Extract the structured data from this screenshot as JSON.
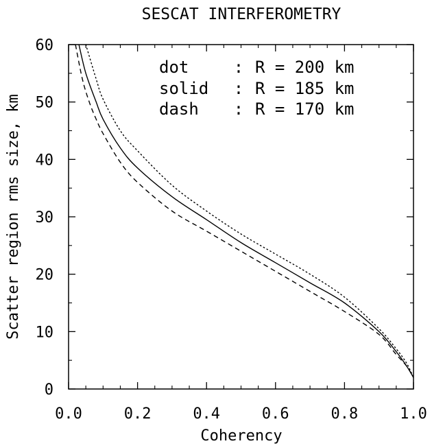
{
  "chart_data": {
    "type": "line",
    "title": "SESCAT INTERFEROMETRY",
    "xlabel": "Coherency",
    "ylabel": "Scatter region rms size, km",
    "xlim": [
      0.0,
      1.0
    ],
    "ylim": [
      0,
      60
    ],
    "x_ticks": [
      "0.0",
      "0.2",
      "0.4",
      "0.6",
      "0.8",
      "1.0"
    ],
    "y_ticks": [
      "0",
      "10",
      "20",
      "30",
      "40",
      "50",
      "60"
    ],
    "grid": false,
    "legend_position": "top-right",
    "legend": [
      {
        "style": "dot",
        "label": "R = 200 km",
        "key": "dot"
      },
      {
        "style": "solid",
        "label": "R = 185 km",
        "key": "solid"
      },
      {
        "style": "dash",
        "label": "R = 170 km",
        "key": "dash"
      }
    ],
    "series": [
      {
        "name": "R = 200 km",
        "style": "dotted",
        "x": [
          0.05,
          0.08,
          0.1,
          0.15,
          0.2,
          0.3,
          0.4,
          0.5,
          0.6,
          0.7,
          0.8,
          0.9,
          0.95,
          0.98,
          1.0
        ],
        "y": [
          60,
          54,
          50.5,
          45,
          41.5,
          35.5,
          31,
          27,
          23.5,
          20,
          16,
          10.5,
          7,
          4.5,
          2
        ]
      },
      {
        "name": "R = 185 km",
        "style": "solid",
        "x": [
          0.03,
          0.05,
          0.08,
          0.1,
          0.15,
          0.2,
          0.3,
          0.4,
          0.5,
          0.6,
          0.7,
          0.8,
          0.9,
          0.95,
          0.98,
          1.0
        ],
        "y": [
          60,
          55,
          50,
          47,
          42,
          38.5,
          33.5,
          29.5,
          25.5,
          22,
          18.5,
          15,
          10,
          6.5,
          4,
          2
        ]
      },
      {
        "name": "R = 170 km",
        "style": "dashed",
        "x": [
          0.02,
          0.04,
          0.06,
          0.08,
          0.1,
          0.15,
          0.2,
          0.3,
          0.4,
          0.5,
          0.6,
          0.7,
          0.8,
          0.9,
          0.95,
          0.98,
          1.0
        ],
        "y": [
          60,
          54,
          50,
          47,
          44.5,
          39.5,
          36,
          31,
          27.5,
          24,
          20.5,
          17,
          13.5,
          9.5,
          6,
          4,
          2
        ]
      }
    ]
  }
}
